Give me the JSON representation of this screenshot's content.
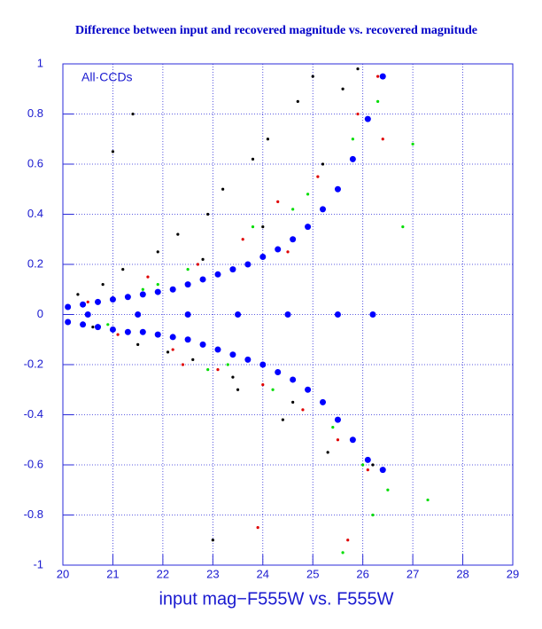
{
  "chart_data": {
    "type": "scatter",
    "title": "Difference between input and recovered magnitude vs. recovered magnitude",
    "x_label": "input mag−F555W vs. F555W",
    "annotation": "All·CCDs",
    "xlim": [
      20,
      29
    ],
    "xticks": [
      20,
      21,
      22,
      23,
      24,
      25,
      26,
      27,
      28,
      29
    ],
    "ylim": [
      -1,
      1
    ],
    "yticks": [
      -1,
      -0.8,
      -0.6,
      -0.4,
      -0.2,
      0,
      0.2,
      0.4,
      0.6,
      0.8,
      1
    ],
    "grid": true,
    "series": [
      {
        "color": "#000000",
        "x": [
          20.3,
          20.8,
          21.2,
          21.5,
          21.9,
          22.3,
          22.6,
          22.9,
          23.2,
          23.5,
          23.8,
          24.1,
          24.4,
          24.7,
          25.0,
          25.3,
          25.6,
          25.9,
          26.2,
          20.6,
          21.4,
          22.1,
          22.8,
          23.4,
          24.0,
          24.6,
          25.2,
          25.8,
          21.0,
          23.0
        ],
        "values": [
          0.08,
          0.12,
          0.18,
          -0.12,
          0.25,
          0.32,
          -0.18,
          0.4,
          0.5,
          -0.3,
          0.62,
          0.7,
          -0.42,
          0.85,
          0.95,
          -0.55,
          0.9,
          0.98,
          -0.6,
          -0.05,
          0.8,
          -0.15,
          0.22,
          -0.25,
          0.35,
          -0.35,
          0.6,
          -0.5,
          0.65,
          -0.9
        ]
      },
      {
        "color": "#e00000",
        "x": [
          20.5,
          21.1,
          21.7,
          22.2,
          22.7,
          23.1,
          23.6,
          24.0,
          24.3,
          24.8,
          25.1,
          25.5,
          25.9,
          26.1,
          26.3,
          22.4,
          23.9,
          25.7,
          26.4,
          24.5
        ],
        "values": [
          0.05,
          -0.08,
          0.15,
          -0.14,
          0.2,
          -0.22,
          0.3,
          -0.28,
          0.45,
          -0.38,
          0.55,
          -0.5,
          0.8,
          -0.62,
          0.95,
          -0.2,
          -0.85,
          -0.9,
          0.7,
          0.25
        ]
      },
      {
        "color": "#00dd00",
        "x": [
          20.9,
          21.6,
          22.5,
          23.3,
          23.8,
          24.2,
          24.9,
          25.4,
          25.8,
          26.0,
          26.3,
          26.5,
          26.8,
          27.3,
          27.0,
          22.9,
          24.6,
          25.6,
          26.2,
          21.9
        ],
        "values": [
          -0.04,
          0.1,
          0.18,
          -0.2,
          0.35,
          -0.3,
          0.48,
          -0.45,
          0.7,
          -0.6,
          0.85,
          -0.7,
          0.35,
          -0.74,
          0.68,
          -0.22,
          0.42,
          -0.95,
          -0.8,
          0.12
        ]
      },
      {
        "color": "#0000ff",
        "x": [
          20.1,
          20.4,
          20.7,
          21.0,
          21.3,
          21.6,
          21.9,
          22.2,
          22.5,
          22.8,
          23.1,
          23.4,
          23.7,
          24.0,
          24.3,
          24.6,
          24.9,
          25.2,
          25.5,
          25.8,
          26.1,
          26.4,
          20.1,
          20.4,
          20.7,
          21.0,
          21.3,
          21.6,
          21.9,
          22.2,
          22.5,
          22.8,
          23.1,
          23.4,
          23.7,
          24.0,
          24.3,
          24.6,
          24.9,
          25.2,
          25.5,
          25.8,
          26.1,
          26.4,
          20.5,
          21.5,
          22.5,
          23.5,
          24.5,
          25.5,
          26.2
        ],
        "values": [
          0.03,
          0.04,
          0.05,
          0.06,
          0.07,
          0.08,
          0.09,
          0.1,
          0.12,
          0.14,
          0.16,
          0.18,
          0.2,
          0.23,
          0.26,
          0.3,
          0.35,
          0.42,
          0.5,
          0.62,
          0.78,
          0.95,
          -0.03,
          -0.04,
          -0.05,
          -0.06,
          -0.07,
          -0.07,
          -0.08,
          -0.09,
          -0.1,
          -0.12,
          -0.14,
          -0.16,
          -0.18,
          -0.2,
          -0.23,
          -0.26,
          -0.3,
          -0.35,
          -0.42,
          -0.5,
          -0.58,
          -0.62,
          0,
          0,
          0,
          0,
          0,
          0,
          0
        ]
      }
    ]
  }
}
